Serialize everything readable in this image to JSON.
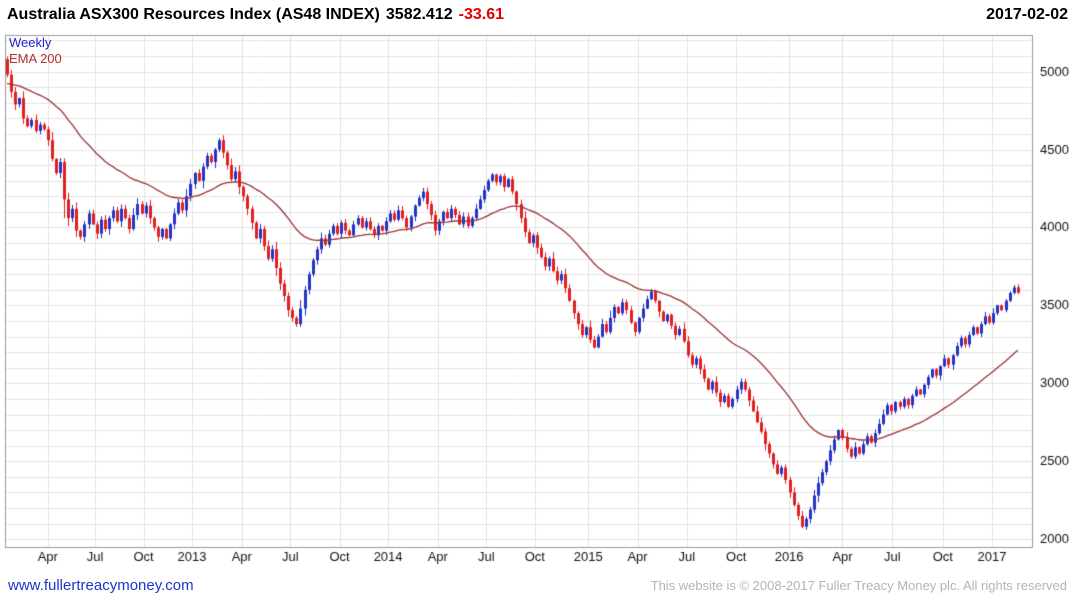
{
  "header": {
    "title": "Australia ASX300 Resources Index (AS48 INDEX)",
    "price": "3582.412",
    "change": "-33.61",
    "date": "2017-02-02"
  },
  "overlay": {
    "timeframe_label": "Weekly",
    "ema_label": "EMA 200"
  },
  "footer": {
    "link": "www.fullertreacymoney.com",
    "copyright": "This website is © 2008-2017 Fuller Treacy Money plc. All rights reserved"
  },
  "colors": {
    "up_candle": "#2333c6",
    "down_candle": "#e01f1f",
    "ema_line": "#993333",
    "grid": "#e3e3e3",
    "plot_border": "#9a9a9a",
    "timeframe_label": "#2222cc",
    "ema_label": "#b03030",
    "change": "#e00000",
    "link": "#2233cc",
    "copyright": "#b3b3bd",
    "axis_text": "#111111"
  },
  "chart_data": {
    "type": "candlestick",
    "timeframe": "weekly",
    "title": "Australia ASX300 Resources Index (AS48 INDEX)",
    "last_close": 3582.412,
    "change": -33.61,
    "date": "2017-02-02",
    "ylim": [
      1950,
      5235
    ],
    "y_ticks": [
      2000,
      2500,
      3000,
      3500,
      4000,
      4500,
      5000
    ],
    "grid_step": 100,
    "grid": true,
    "legend_position": "top-left",
    "x_ticks": [
      {
        "pos": 10.0,
        "label": "Apr"
      },
      {
        "pos": 21.6,
        "label": "Jul"
      },
      {
        "pos": 33.5,
        "label": "Oct"
      },
      {
        "pos": 45.4,
        "label": "2013"
      },
      {
        "pos": 57.6,
        "label": "Apr"
      },
      {
        "pos": 69.5,
        "label": "Jul"
      },
      {
        "pos": 81.6,
        "label": "Oct"
      },
      {
        "pos": 93.5,
        "label": "2014"
      },
      {
        "pos": 105.7,
        "label": "Apr"
      },
      {
        "pos": 117.6,
        "label": "Jul"
      },
      {
        "pos": 129.5,
        "label": "Oct"
      },
      {
        "pos": 142.6,
        "label": "2015"
      },
      {
        "pos": 154.7,
        "label": "Apr"
      },
      {
        "pos": 166.8,
        "label": "Jul"
      },
      {
        "pos": 178.9,
        "label": "Oct"
      },
      {
        "pos": 191.9,
        "label": "2016"
      },
      {
        "pos": 205.0,
        "label": "Apr"
      },
      {
        "pos": 217.2,
        "label": "Jul"
      },
      {
        "pos": 229.6,
        "label": "Oct"
      },
      {
        "pos": 241.7,
        "label": "2017"
      }
    ],
    "first_open": 5080,
    "closes": [
      4980,
      4870,
      4790,
      4830,
      4700,
      4650,
      4690,
      4620,
      4660,
      4630,
      4560,
      4440,
      4350,
      4420,
      4180,
      4060,
      4120,
      3980,
      3940,
      4020,
      4090,
      4020,
      3960,
      4050,
      3990,
      4060,
      4110,
      4040,
      4120,
      4060,
      3990,
      4080,
      4150,
      4090,
      4140,
      4060,
      4000,
      3940,
      3990,
      3930,
      4020,
      4090,
      4160,
      4110,
      4200,
      4280,
      4350,
      4300,
      4390,
      4460,
      4420,
      4500,
      4560,
      4480,
      4400,
      4310,
      4360,
      4260,
      4200,
      4120,
      4030,
      3930,
      3990,
      3880,
      3800,
      3860,
      3740,
      3640,
      3560,
      3470,
      3420,
      3380,
      3480,
      3600,
      3700,
      3790,
      3860,
      3930,
      3890,
      3960,
      4010,
      3960,
      4030,
      3980,
      3950,
      4020,
      4060,
      4000,
      4040,
      3990,
      3950,
      4010,
      3980,
      4040,
      4090,
      4050,
      4110,
      4060,
      4000,
      4070,
      4140,
      4190,
      4230,
      4150,
      4080,
      3980,
      4040,
      4100,
      4060,
      4120,
      4080,
      4020,
      4070,
      4010,
      4060,
      4120,
      4180,
      4240,
      4300,
      4340,
      4290,
      4330,
      4260,
      4310,
      4230,
      4150,
      4060,
      3970,
      3900,
      3950,
      3870,
      3810,
      3750,
      3800,
      3720,
      3660,
      3700,
      3610,
      3530,
      3450,
      3380,
      3310,
      3360,
      3280,
      3230,
      3300,
      3380,
      3330,
      3420,
      3490,
      3450,
      3520,
      3470,
      3390,
      3330,
      3420,
      3480,
      3540,
      3590,
      3530,
      3460,
      3400,
      3440,
      3370,
      3310,
      3350,
      3270,
      3180,
      3120,
      3160,
      3090,
      3030,
      2960,
      3010,
      2940,
      2880,
      2920,
      2850,
      2900,
      2960,
      3010,
      2960,
      2890,
      2820,
      2750,
      2690,
      2610,
      2550,
      2480,
      2420,
      2460,
      2380,
      2300,
      2220,
      2150,
      2080,
      2130,
      2190,
      2280,
      2360,
      2430,
      2500,
      2570,
      2640,
      2700,
      2650,
      2580,
      2530,
      2590,
      2550,
      2610,
      2660,
      2620,
      2680,
      2740,
      2800,
      2860,
      2820,
      2880,
      2850,
      2900,
      2860,
      2920,
      2960,
      2930,
      2990,
      3040,
      3090,
      3050,
      3110,
      3160,
      3120,
      3180,
      3240,
      3290,
      3250,
      3310,
      3360,
      3320,
      3380,
      3430,
      3390,
      3450,
      3500,
      3470,
      3530,
      3580,
      3616.02,
      3582.41
    ],
    "ema": {
      "label": "EMA 200",
      "render_span": 36,
      "seed": 4920
    }
  }
}
